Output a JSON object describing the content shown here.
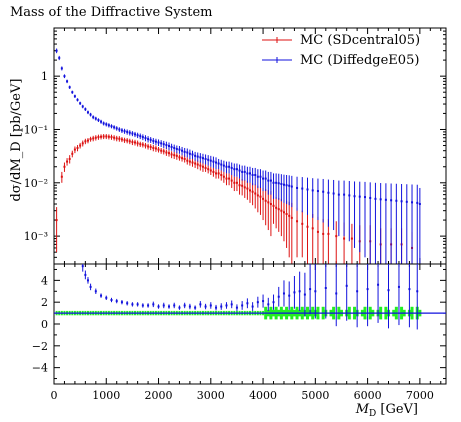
{
  "chart_data": {
    "type": "scatter",
    "title": "Mass of the Diffractive System",
    "xlabel_main": "M",
    "xlabel_sub": "D",
    "xlabel_unit": "[GeV]",
    "ylabel": "dσ/dM_D [pb/GeV]",
    "xlim": [
      0,
      7500
    ],
    "ylim_main": [
      0.0003,
      8
    ],
    "ylim_main_scale": "log",
    "ylim_ratio": [
      -5.5,
      5.5
    ],
    "x_ticks": [
      0,
      1000,
      2000,
      3000,
      4000,
      5000,
      6000,
      7000
    ],
    "x_tick_labels": [
      "0",
      "1000",
      "2000",
      "3000",
      "4000",
      "5000",
      "6000",
      "7000"
    ],
    "y_ticks_main": [
      0.001,
      0.01,
      0.1,
      1
    ],
    "y_tick_labels_main": [
      "10⁻³",
      "10⁻²",
      "10⁻¹",
      "1"
    ],
    "y_ticks_ratio": [
      -4,
      -2,
      0,
      2,
      4
    ],
    "y_tick_labels_ratio": [
      "−4",
      "−2",
      "0",
      "2",
      "4"
    ],
    "legend_position": "top-right",
    "series": [
      {
        "name": "MC (SDcentral05)",
        "color": "#dd1111",
        "x": [
          50,
          150,
          200,
          250,
          300,
          350,
          400,
          450,
          500,
          550,
          600,
          650,
          700,
          750,
          800,
          850,
          900,
          950,
          1000,
          1050,
          1100,
          1150,
          1200,
          1250,
          1300,
          1350,
          1400,
          1450,
          1500,
          1550,
          1600,
          1650,
          1700,
          1750,
          1800,
          1850,
          1900,
          1950,
          2000,
          2050,
          2100,
          2150,
          2200,
          2250,
          2300,
          2350,
          2400,
          2450,
          2500,
          2550,
          2600,
          2650,
          2700,
          2750,
          2800,
          2850,
          2900,
          2950,
          3000,
          3050,
          3100,
          3150,
          3200,
          3250,
          3300,
          3350,
          3400,
          3450,
          3500,
          3550,
          3600,
          3650,
          3700,
          3750,
          3800,
          3850,
          3900,
          3950,
          4000,
          4050,
          4100,
          4150,
          4200,
          4250,
          4300,
          4350,
          4400,
          4450,
          4500,
          4550,
          4650,
          4750,
          4850,
          4950,
          5050,
          5150,
          5250,
          5400,
          5550,
          5700,
          5850,
          6050,
          6250,
          6450,
          6650,
          6850
        ],
        "values": [
          0.002,
          0.013,
          0.02,
          0.025,
          0.028,
          0.035,
          0.042,
          0.045,
          0.05,
          0.055,
          0.06,
          0.062,
          0.066,
          0.068,
          0.07,
          0.072,
          0.073,
          0.074,
          0.074,
          0.073,
          0.072,
          0.07,
          0.068,
          0.067,
          0.065,
          0.063,
          0.062,
          0.06,
          0.058,
          0.057,
          0.055,
          0.053,
          0.052,
          0.05,
          0.048,
          0.047,
          0.045,
          0.044,
          0.042,
          0.04,
          0.039,
          0.037,
          0.036,
          0.034,
          0.033,
          0.032,
          0.03,
          0.029,
          0.028,
          0.026,
          0.025,
          0.024,
          0.023,
          0.022,
          0.021,
          0.02,
          0.019,
          0.018,
          0.017,
          0.016,
          0.015,
          0.015,
          0.014,
          0.013,
          0.012,
          0.012,
          0.011,
          0.01,
          0.01,
          0.009,
          0.0088,
          0.0082,
          0.0078,
          0.0072,
          0.0068,
          0.0063,
          0.0058,
          0.0055,
          0.005,
          0.0046,
          0.0043,
          0.004,
          0.0037,
          0.0034,
          0.0032,
          0.003,
          0.0028,
          0.0026,
          0.0024,
          0.0022,
          0.0019,
          0.0017,
          0.0015,
          0.0014,
          0.0012,
          0.0011,
          0.0011,
          0.001,
          0.0009,
          0.0009,
          0.0008,
          0.0008,
          0.0007,
          0.0007,
          0.0007,
          0.0006
        ],
        "errors": [
          0.0015,
          0.003,
          0.004,
          0.004,
          0.005,
          0.005,
          0.006,
          0.006,
          0.006,
          0.007,
          0.007,
          0.007,
          0.007,
          0.008,
          0.008,
          0.008,
          0.008,
          0.008,
          0.008,
          0.008,
          0.008,
          0.008,
          0.008,
          0.008,
          0.007,
          0.007,
          0.007,
          0.007,
          0.007,
          0.007,
          0.007,
          0.006,
          0.006,
          0.006,
          0.006,
          0.006,
          0.006,
          0.006,
          0.005,
          0.005,
          0.005,
          0.005,
          0.005,
          0.005,
          0.005,
          0.005,
          0.004,
          0.004,
          0.004,
          0.004,
          0.004,
          0.004,
          0.004,
          0.004,
          0.004,
          0.004,
          0.003,
          0.003,
          0.003,
          0.003,
          0.003,
          0.003,
          0.003,
          0.003,
          0.003,
          0.003,
          0.003,
          0.003,
          0.003,
          0.003,
          0.003,
          0.003,
          0.003,
          0.003,
          0.003,
          0.003,
          0.003,
          0.003,
          0.003,
          0.003,
          0.003,
          0.003,
          0.002,
          0.002,
          0.002,
          0.002,
          0.002,
          0.002,
          0.002,
          0.002,
          0.0015,
          0.0013,
          0.0012,
          0.0012,
          0.0011,
          0.001,
          0.001,
          0.0009,
          0.0009,
          0.0008,
          0.0008,
          0.0008,
          0.0007,
          0.0007,
          0.0007,
          0.0006
        ]
      },
      {
        "name": "MC (DiffedgeE05)",
        "color": "#1111dd",
        "x": [
          50,
          100,
          150,
          200,
          250,
          300,
          350,
          400,
          450,
          500,
          550,
          600,
          650,
          700,
          750,
          800,
          850,
          900,
          950,
          1000,
          1050,
          1100,
          1150,
          1200,
          1250,
          1300,
          1350,
          1400,
          1450,
          1500,
          1550,
          1600,
          1650,
          1700,
          1750,
          1800,
          1850,
          1900,
          1950,
          2000,
          2050,
          2100,
          2150,
          2200,
          2250,
          2300,
          2350,
          2400,
          2450,
          2500,
          2550,
          2600,
          2650,
          2700,
          2750,
          2800,
          2850,
          2900,
          2950,
          3000,
          3050,
          3100,
          3150,
          3200,
          3250,
          3300,
          3350,
          3400,
          3450,
          3500,
          3550,
          3600,
          3650,
          3700,
          3750,
          3800,
          3850,
          3900,
          3950,
          4000,
          4050,
          4100,
          4150,
          4200,
          4250,
          4300,
          4350,
          4400,
          4450,
          4500,
          4550,
          4650,
          4750,
          4850,
          4950,
          5050,
          5150,
          5250,
          5350,
          5450,
          5550,
          5650,
          5750,
          5850,
          5950,
          6050,
          6150,
          6250,
          6350,
          6450,
          6550,
          6650,
          6750,
          6850,
          6950,
          7000
        ],
        "values": [
          3.0,
          2.2,
          1.4,
          1.0,
          0.8,
          0.62,
          0.5,
          0.42,
          0.36,
          0.31,
          0.27,
          0.24,
          0.21,
          0.19,
          0.17,
          0.16,
          0.15,
          0.14,
          0.13,
          0.125,
          0.12,
          0.115,
          0.11,
          0.105,
          0.1,
          0.096,
          0.093,
          0.09,
          0.087,
          0.084,
          0.081,
          0.078,
          0.075,
          0.072,
          0.069,
          0.066,
          0.064,
          0.061,
          0.059,
          0.057,
          0.055,
          0.053,
          0.051,
          0.049,
          0.047,
          0.045,
          0.043,
          0.042,
          0.04,
          0.038,
          0.037,
          0.035,
          0.034,
          0.032,
          0.031,
          0.03,
          0.029,
          0.028,
          0.027,
          0.026,
          0.025,
          0.024,
          0.023,
          0.022,
          0.021,
          0.02,
          0.02,
          0.019,
          0.018,
          0.018,
          0.017,
          0.016,
          0.016,
          0.015,
          0.015,
          0.014,
          0.014,
          0.013,
          0.013,
          0.012,
          0.012,
          0.011,
          0.011,
          0.01,
          0.01,
          0.0098,
          0.0095,
          0.0092,
          0.009,
          0.0088,
          0.0085,
          0.008,
          0.0078,
          0.0075,
          0.0072,
          0.007,
          0.0068,
          0.0065,
          0.0063,
          0.006,
          0.006,
          0.0058,
          0.0056,
          0.0055,
          0.0054,
          0.0052,
          0.005,
          0.0049,
          0.0048,
          0.0047,
          0.0046,
          0.0045,
          0.0044,
          0.0043,
          0.0042,
          0.004
        ],
        "errors": [
          0.3,
          0.2,
          0.12,
          0.08,
          0.06,
          0.045,
          0.035,
          0.03,
          0.025,
          0.022,
          0.02,
          0.018,
          0.016,
          0.015,
          0.014,
          0.013,
          0.012,
          0.012,
          0.011,
          0.011,
          0.011,
          0.01,
          0.01,
          0.01,
          0.01,
          0.01,
          0.01,
          0.01,
          0.01,
          0.009,
          0.009,
          0.009,
          0.009,
          0.009,
          0.009,
          0.009,
          0.008,
          0.008,
          0.008,
          0.008,
          0.008,
          0.008,
          0.008,
          0.008,
          0.007,
          0.007,
          0.007,
          0.007,
          0.007,
          0.007,
          0.007,
          0.007,
          0.006,
          0.006,
          0.006,
          0.006,
          0.006,
          0.006,
          0.006,
          0.006,
          0.006,
          0.006,
          0.005,
          0.005,
          0.005,
          0.005,
          0.005,
          0.005,
          0.005,
          0.005,
          0.005,
          0.005,
          0.005,
          0.005,
          0.005,
          0.005,
          0.005,
          0.005,
          0.005,
          0.005,
          0.005,
          0.005,
          0.005,
          0.005,
          0.005,
          0.005,
          0.005,
          0.005,
          0.005,
          0.005,
          0.005,
          0.005,
          0.005,
          0.005,
          0.005,
          0.005,
          0.005,
          0.005,
          0.005,
          0.005,
          0.005,
          0.005,
          0.005,
          0.005,
          0.005,
          0.005,
          0.005,
          0.005,
          0.005,
          0.005,
          0.005,
          0.005,
          0.005,
          0.005,
          0.005,
          0.004
        ]
      }
    ],
    "ratio": {
      "reference_color": "#1111dd",
      "band_color": "#22ee22",
      "blue_x": [
        550,
        600,
        650,
        700,
        800,
        900,
        1000,
        1100,
        1200,
        1300,
        1400,
        1500,
        1600,
        1700,
        1800,
        1900,
        2000,
        2100,
        2200,
        2300,
        2400,
        2500,
        2600,
        2700,
        2800,
        2900,
        3000,
        3100,
        3200,
        3300,
        3400,
        3500,
        3600,
        3700,
        3800,
        3900,
        4000,
        4100,
        4200,
        4300,
        4400,
        4500,
        4600,
        4700,
        4800,
        4900,
        5000,
        5200,
        5400,
        5600,
        5800,
        6000,
        6200,
        6400,
        6600,
        6800,
        6950
      ],
      "blue_values": [
        5.3,
        4.5,
        4.0,
        3.4,
        3.0,
        2.6,
        2.4,
        2.2,
        2.1,
        2.0,
        1.9,
        1.8,
        1.8,
        1.7,
        1.7,
        1.8,
        1.6,
        1.7,
        1.6,
        1.7,
        1.5,
        1.7,
        1.6,
        1.5,
        1.8,
        1.6,
        1.7,
        1.5,
        1.6,
        1.7,
        1.8,
        1.5,
        1.7,
        1.9,
        1.6,
        2.0,
        2.1,
        1.8,
        2.0,
        2.5,
        2.8,
        2.6,
        2.9,
        3.0,
        2.7,
        3.2,
        3.0,
        3.3,
        2.8,
        3.5,
        3.0,
        3.2,
        3.6,
        3.1,
        3.4,
        3.2,
        3.0
      ],
      "blue_errors": [
        0.5,
        0.4,
        0.3,
        0.3,
        0.25,
        0.2,
        0.2,
        0.2,
        0.2,
        0.2,
        0.2,
        0.2,
        0.2,
        0.2,
        0.2,
        0.25,
        0.2,
        0.25,
        0.2,
        0.25,
        0.2,
        0.25,
        0.25,
        0.2,
        0.3,
        0.25,
        0.3,
        0.25,
        0.3,
        0.3,
        0.35,
        0.3,
        0.4,
        0.45,
        0.4,
        0.5,
        0.6,
        0.6,
        0.7,
        0.9,
        1.2,
        1.3,
        1.5,
        1.8,
        2.0,
        2.3,
        2.5,
        2.8,
        3.0,
        3.2,
        3.3,
        3.4,
        3.5,
        3.5,
        3.5,
        3.5,
        3.5
      ]
    }
  }
}
